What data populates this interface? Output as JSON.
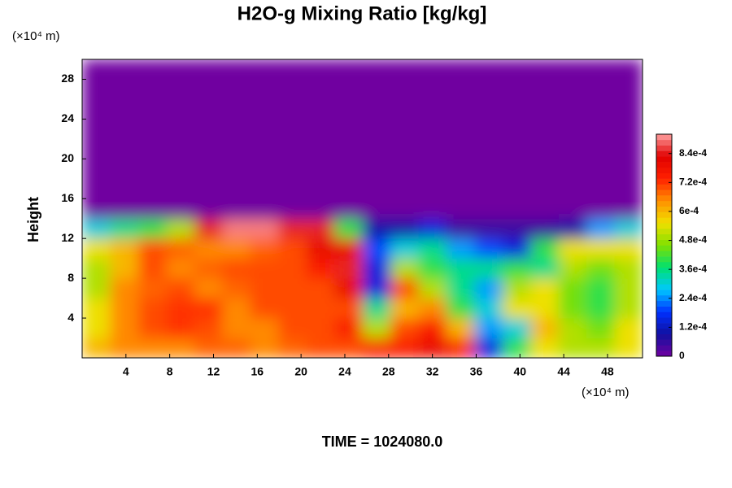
{
  "chart_data": {
    "type": "heatmap",
    "title": "H2O-g Mixing Ratio [kg/kg]",
    "x_unit": "(×10⁴ m)",
    "y_unit": "(×10⁴ m)",
    "y_label": "Height",
    "footer": "TIME = 1024080.0",
    "xlim": [
      0,
      51.2
    ],
    "ylim": [
      0,
      30
    ],
    "xticks": [
      4,
      8,
      12,
      16,
      20,
      24,
      28,
      32,
      36,
      40,
      44,
      48
    ],
    "yticks": [
      4,
      8,
      12,
      16,
      20,
      24,
      28
    ],
    "xbins": [
      0,
      2.56,
      5.12,
      7.68,
      10.24,
      12.8,
      15.36,
      17.92,
      20.48,
      23.04,
      25.6,
      28.16,
      30.72,
      33.28,
      35.84,
      38.4,
      40.96,
      43.52,
      46.08,
      48.64,
      51.2
    ],
    "ybins": [
      0,
      2,
      4,
      6,
      8,
      10,
      12,
      14,
      16,
      18,
      20,
      22,
      24,
      26,
      28,
      30
    ],
    "z": [
      [
        0.0006,
        0.00065,
        0.00065,
        0.00065,
        0.00068,
        0.00068,
        0.00065,
        0.00068,
        0.0007,
        0.0007,
        0.00075,
        0.00075,
        0.0008,
        0.00075,
        0.00015,
        0.0004,
        0.00055,
        0.0005,
        0.0005,
        0.00055
      ],
      [
        0.00055,
        0.00065,
        0.0007,
        0.00072,
        0.0007,
        0.00065,
        0.00065,
        0.0007,
        0.0007,
        0.00075,
        0.0005,
        0.0007,
        0.00075,
        0.0006,
        0.00025,
        0.0003,
        0.0006,
        0.0005,
        0.00045,
        0.00055
      ],
      [
        0.00055,
        0.00065,
        0.0007,
        0.00072,
        0.00072,
        0.00065,
        0.0007,
        0.0007,
        0.0007,
        0.0007,
        0.00035,
        0.0006,
        0.00065,
        0.0004,
        0.0003,
        0.00055,
        0.00055,
        0.00045,
        0.0004,
        0.0005
      ],
      [
        0.0005,
        0.00065,
        0.00068,
        0.0007,
        0.00065,
        0.00068,
        0.0007,
        0.0007,
        0.0007,
        0.0008,
        0.00015,
        0.0007,
        0.0005,
        0.00035,
        0.00025,
        0.0005,
        0.00055,
        0.00045,
        0.0004,
        0.0005
      ],
      [
        0.0005,
        0.0006,
        0.0007,
        0.00065,
        0.00068,
        0.0007,
        0.0007,
        0.0007,
        0.00075,
        0.00085,
        0.00015,
        0.0005,
        0.0004,
        0.00035,
        0.00035,
        0.0004,
        0.00035,
        0.0005,
        0.00045,
        0.0005
      ],
      [
        0.00055,
        0.0006,
        0.0007,
        0.00068,
        0.00065,
        0.00065,
        0.00068,
        0.0007,
        0.0008,
        0.0008,
        0.0002,
        0.0003,
        0.00035,
        0.00025,
        0.0002,
        0.00015,
        0.0004,
        0.00055,
        0.00055,
        0.00055
      ],
      [
        0.0003,
        0.00035,
        0.0004,
        0.0005,
        0.00085,
        0.0009,
        0.0009,
        0.00085,
        0.00085,
        0.0004,
        0.0001,
        0.0001,
        0.00015,
        5e-05,
        5e-05,
        5e-05,
        5e-05,
        0.0001,
        0.00025,
        0.0003
      ],
      [
        0,
        0,
        0,
        0,
        0,
        0,
        0,
        0,
        0,
        0,
        0,
        0,
        0,
        0,
        0,
        0,
        0,
        0,
        0,
        0
      ],
      [
        0,
        0,
        0,
        0,
        0,
        0,
        0,
        0,
        0,
        0,
        0,
        0,
        0,
        0,
        0,
        0,
        0,
        0,
        0,
        0
      ],
      [
        0,
        0,
        0,
        0,
        0,
        0,
        0,
        0,
        0,
        0,
        0,
        0,
        0,
        0,
        0,
        0,
        0,
        0,
        0,
        0
      ],
      [
        0,
        0,
        0,
        0,
        0,
        0,
        0,
        0,
        0,
        0,
        0,
        0,
        0,
        0,
        0,
        0,
        0,
        0,
        0,
        0
      ],
      [
        0,
        0,
        0,
        0,
        0,
        0,
        0,
        0,
        0,
        0,
        0,
        0,
        0,
        0,
        0,
        0,
        0,
        0,
        0,
        0
      ],
      [
        0,
        0,
        0,
        0,
        0,
        0,
        0,
        0,
        0,
        0,
        0,
        0,
        0,
        0,
        0,
        0,
        0,
        0,
        0,
        0
      ],
      [
        0,
        0,
        0,
        0,
        0,
        0,
        0,
        0,
        0,
        0,
        0,
        0,
        0,
        0,
        0,
        0,
        0,
        0,
        0,
        0
      ],
      [
        0,
        0,
        0,
        0,
        0,
        0,
        0,
        0,
        0,
        0,
        0,
        0,
        0,
        0,
        0,
        0,
        0,
        0,
        0,
        0
      ]
    ],
    "clim": [
      0,
      0.00092
    ],
    "cticks": [
      0,
      {
        "value": 0.00012,
        "label": "1.2e-4"
      },
      {
        "value": 0.00024,
        "label": "2.4e-4"
      },
      {
        "value": 0.00036,
        "label": "3.6e-4"
      },
      {
        "value": 0.00048,
        "label": "4.8e-4"
      },
      {
        "value": 0.0006,
        "label": "6e-4"
      },
      {
        "value": 0.00072,
        "label": "7.2e-4"
      },
      {
        "value": 0.00084,
        "label": "8.4e-4"
      }
    ],
    "colorscale": [
      "#7000a0",
      "#1010a0",
      "#0030ff",
      "#00c8ff",
      "#00e070",
      "#80e000",
      "#f0e000",
      "#ff9000",
      "#ff2000",
      "#e00000",
      "#ffa0a0"
    ]
  }
}
